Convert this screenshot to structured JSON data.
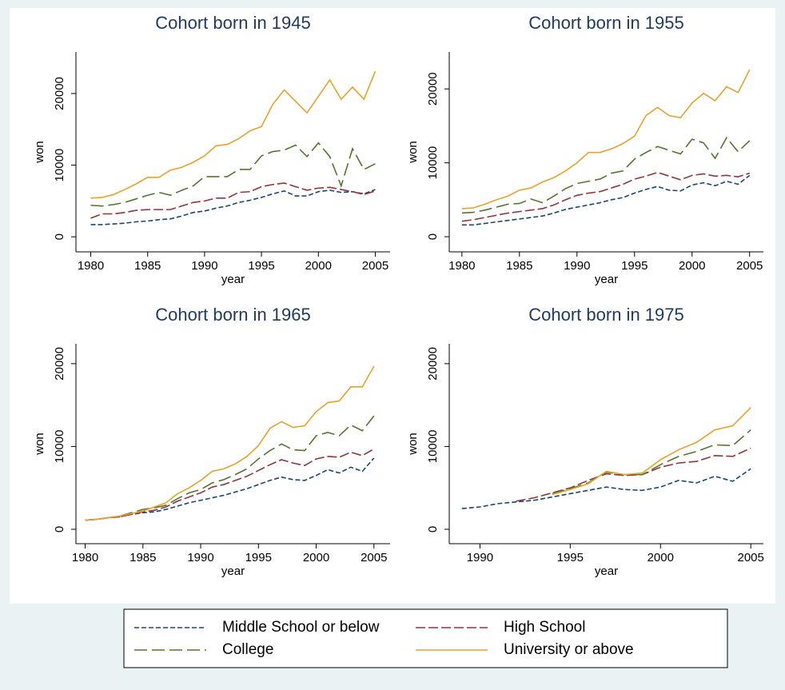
{
  "chart_data": [
    {
      "type": "line",
      "title": "Cohort born in 1945",
      "xlabel": "year",
      "ylabel": "won",
      "x": [
        1980,
        1981,
        1982,
        1983,
        1984,
        1985,
        1986,
        1987,
        1988,
        1989,
        1990,
        1991,
        1992,
        1993,
        1994,
        1995,
        1996,
        1997,
        1998,
        1999,
        2000,
        2001,
        2002,
        2003,
        2004,
        2005
      ],
      "xlim": [
        1978.7,
        2006.3
      ],
      "xticks": [
        1980,
        1985,
        1990,
        1995,
        2000,
        2005
      ],
      "ylim": [
        -2100,
        25800
      ],
      "yticks": [
        0,
        10000,
        20000
      ],
      "series": [
        {
          "name": "Middle School or below",
          "color": "#1a476f",
          "values": [
            1700,
            1700,
            1800,
            1900,
            2100,
            2200,
            2400,
            2500,
            2900,
            3400,
            3600,
            4000,
            4300,
            4800,
            5100,
            5500,
            6000,
            6400,
            5700,
            5700,
            6300,
            6500,
            6200,
            6300,
            6000,
            6600
          ]
        },
        {
          "name": "High School",
          "color": "#90353b",
          "values": [
            2600,
            3200,
            3200,
            3400,
            3700,
            3800,
            3800,
            3800,
            4300,
            4800,
            5000,
            5400,
            5400,
            6200,
            6300,
            7000,
            7300,
            7500,
            7000,
            6500,
            6800,
            6900,
            6600,
            6300,
            5900,
            6400
          ]
        },
        {
          "name": "College",
          "color": "#55752f",
          "values": [
            4400,
            4300,
            4500,
            4800,
            5300,
            5800,
            6200,
            5800,
            6500,
            7100,
            8400,
            8400,
            8400,
            9400,
            9400,
            11300,
            11900,
            12100,
            12800,
            11200,
            13100,
            11200,
            7100,
            12300,
            9400,
            10200
          ]
        },
        {
          "name": "University or above",
          "color": "#e8a227",
          "values": [
            5400,
            5500,
            5900,
            6600,
            7400,
            8300,
            8300,
            9300,
            9700,
            10400,
            11300,
            12700,
            12900,
            13700,
            14800,
            15400,
            18500,
            20500,
            18900,
            17300,
            19600,
            21900,
            19200,
            20900,
            19200,
            23100
          ]
        }
      ]
    },
    {
      "type": "line",
      "title": "Cohort born in 1955",
      "xlabel": "year",
      "ylabel": "won",
      "x": [
        1980,
        1981,
        1982,
        1983,
        1984,
        1985,
        1986,
        1987,
        1988,
        1989,
        1990,
        1991,
        1992,
        1993,
        1994,
        1995,
        1996,
        1997,
        1998,
        1999,
        2000,
        2001,
        2002,
        2003,
        2004,
        2005
      ],
      "xlim": [
        1978.9,
        2006.2
      ],
      "xticks": [
        1980,
        1985,
        1990,
        1995,
        2000,
        2005
      ],
      "ylim": [
        -2050,
        25000
      ],
      "yticks": [
        0,
        10000,
        20000
      ],
      "series": [
        {
          "name": "Middle School or below",
          "color": "#1a476f",
          "values": [
            1600,
            1600,
            1800,
            2000,
            2200,
            2400,
            2600,
            2800,
            3200,
            3700,
            4000,
            4300,
            4600,
            5000,
            5300,
            5900,
            6400,
            6800,
            6300,
            6200,
            7000,
            7300,
            6900,
            7500,
            7100,
            8300
          ]
        },
        {
          "name": "High School",
          "color": "#90353b",
          "values": [
            2100,
            2300,
            2600,
            2900,
            3200,
            3400,
            3600,
            3800,
            4300,
            5000,
            5600,
            5900,
            6100,
            6600,
            7100,
            7800,
            8200,
            8700,
            8200,
            7700,
            8300,
            8500,
            8200,
            8300,
            8100,
            8600
          ]
        },
        {
          "name": "College",
          "color": "#55752f",
          "values": [
            3200,
            3300,
            3600,
            4000,
            4400,
            4500,
            5100,
            4600,
            5500,
            6500,
            7200,
            7500,
            7800,
            8600,
            8900,
            10500,
            11400,
            12200,
            11700,
            11200,
            13200,
            12700,
            10600,
            13400,
            11500,
            13000
          ]
        },
        {
          "name": "University or above",
          "color": "#e8a227",
          "values": [
            3800,
            3900,
            4400,
            5000,
            5500,
            6300,
            6600,
            7400,
            8000,
            8900,
            10000,
            11400,
            11400,
            11900,
            12600,
            13600,
            16400,
            17500,
            16400,
            16100,
            18100,
            19400,
            18400,
            20300,
            19500,
            22600
          ]
        }
      ]
    },
    {
      "type": "line",
      "title": "Cohort born in 1965",
      "xlabel": "year",
      "ylabel": "won",
      "x": [
        1980,
        1981,
        1982,
        1983,
        1984,
        1985,
        1986,
        1987,
        1988,
        1989,
        1990,
        1991,
        1992,
        1993,
        1994,
        1995,
        1996,
        1997,
        1998,
        1999,
        2000,
        2001,
        2002,
        2003,
        2004,
        2005
      ],
      "xlim": [
        1979.2,
        2006.4
      ],
      "xticks": [
        1980,
        1985,
        1990,
        1995,
        2000,
        2005
      ],
      "ylim": [
        -1740,
        22400
      ],
      "yticks": [
        0,
        10000,
        20000
      ],
      "series": [
        {
          "name": "Middle School or below",
          "color": "#1a476f",
          "values": [
            1100,
            1200,
            1400,
            1500,
            1800,
            2000,
            2100,
            2400,
            2800,
            3200,
            3500,
            3800,
            4100,
            4500,
            4900,
            5400,
            5900,
            6300,
            6000,
            5900,
            6500,
            7200,
            6800,
            7500,
            7000,
            8600
          ]
        },
        {
          "name": "High School",
          "color": "#90353b",
          "values": [
            1100,
            1200,
            1400,
            1500,
            1800,
            2100,
            2300,
            2700,
            3400,
            3900,
            4400,
            5100,
            5400,
            5900,
            6400,
            7100,
            7800,
            8400,
            8000,
            7700,
            8500,
            8800,
            8700,
            9300,
            8900,
            9700
          ]
        },
        {
          "name": "College",
          "color": "#55752f",
          "values": [
            1100,
            1200,
            1400,
            1600,
            2000,
            2400,
            2600,
            2900,
            3700,
            4400,
            4800,
            5600,
            6000,
            6600,
            7300,
            8500,
            9500,
            10300,
            9600,
            9500,
            11300,
            11700,
            11300,
            12600,
            11900,
            13700
          ]
        },
        {
          "name": "University or above",
          "color": "#e8a227",
          "values": [
            1100,
            1200,
            1400,
            1600,
            1900,
            2200,
            2700,
            3200,
            4300,
            5000,
            5900,
            7000,
            7300,
            7900,
            8800,
            10100,
            12200,
            13000,
            12300,
            12500,
            14200,
            15300,
            15500,
            17200,
            17200,
            19700
          ]
        }
      ]
    },
    {
      "type": "line",
      "title": "Cohort born in 1975",
      "xlabel": "year",
      "ylabel": "won",
      "x": [
        1989,
        1990,
        1991,
        1992,
        1993,
        1994,
        1995,
        1996,
        1997,
        1998,
        1999,
        2000,
        2001,
        2002,
        2003,
        2004,
        2005
      ],
      "xlim": [
        1988.3,
        2005.7
      ],
      "xticks": [
        1990,
        1995,
        2000,
        2005
      ],
      "ylim": [
        -1740,
        22400
      ],
      "yticks": [
        0,
        10000,
        20000
      ],
      "series": [
        {
          "name": "Middle School or below",
          "color": "#1a476f",
          "values": [
            2500,
            2700,
            3100,
            3300,
            3500,
            3900,
            4300,
            4700,
            5100,
            4800,
            4700,
            5100,
            5900,
            5600,
            6400,
            5800,
            7300
          ]
        },
        {
          "name": "High School",
          "color": "#90353b",
          "values": [
            null,
            null,
            null,
            3400,
            3800,
            4400,
            5000,
            5900,
            6700,
            6500,
            6600,
            7500,
            8000,
            8200,
            8900,
            8800,
            9800
          ]
        },
        {
          "name": "College",
          "color": "#55752f",
          "values": [
            null,
            null,
            null,
            null,
            null,
            4300,
            4900,
            5600,
            6900,
            6600,
            6600,
            7800,
            8800,
            9400,
            10200,
            10100,
            12000
          ]
        },
        {
          "name": "University or above",
          "color": "#e8a227",
          "values": [
            null,
            null,
            null,
            null,
            null,
            4200,
            4800,
            5500,
            7000,
            6600,
            6800,
            8400,
            9600,
            10500,
            12000,
            12500,
            14700
          ]
        }
      ]
    }
  ]
}
